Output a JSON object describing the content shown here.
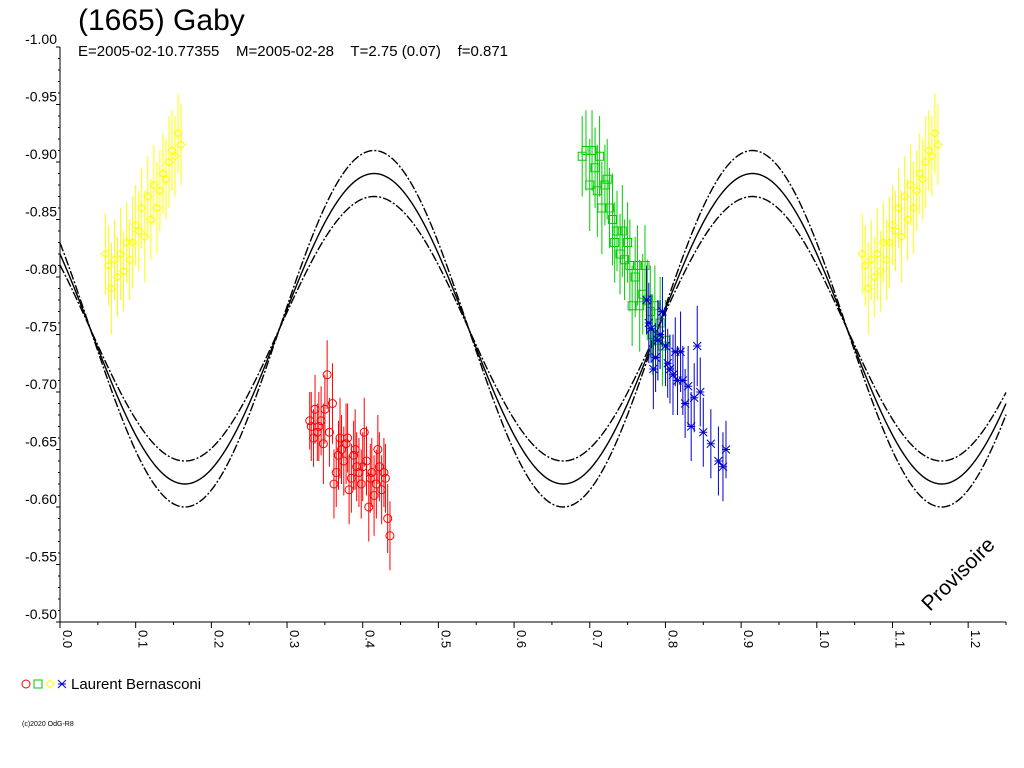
{
  "header": {
    "title": "(1665) Gaby",
    "subtitle": "E=2005-02-10.77355    M=2005-02-28    T=2.75 (0.07)    f=0.871"
  },
  "legend": {
    "label": "Laurent Bernasconi",
    "marker_colors": [
      "#ff0000",
      "#00cc00",
      "#ffff00",
      "#0000cc"
    ]
  },
  "watermark": "Provisoire",
  "copyright": "(c)2020 OdG-R8",
  "chart_data": {
    "type": "scatter",
    "xlim": [
      0,
      1.25
    ],
    "ylim": [
      -1.0,
      -0.5
    ],
    "y_inverted": true,
    "x_ticks": [
      "0.0",
      "0.1",
      "0.2",
      "0.3",
      "0.4",
      "0.5",
      "0.6",
      "0.7",
      "0.8",
      "0.9",
      "1.0",
      "1.1",
      "1.2"
    ],
    "y_ticks": [
      "-1.00",
      "-0.95",
      "-0.90",
      "-0.85",
      "-0.80",
      "-0.75",
      "-0.70",
      "-0.65",
      "-0.60",
      "-0.55",
      "-0.50"
    ],
    "fit_curve": {
      "mean": -0.755,
      "amplitude": 0.135,
      "envelope": 0.02,
      "minimum_phase": 0.415,
      "period_in_phase": 0.5
    },
    "series": [
      {
        "color": "#ff0000",
        "marker": "circle",
        "x": [
          0.33,
          0.332,
          0.335,
          0.337,
          0.34,
          0.342,
          0.345,
          0.348,
          0.35,
          0.353,
          0.356,
          0.36,
          0.362,
          0.365,
          0.368,
          0.37,
          0.372,
          0.375,
          0.378,
          0.38,
          0.382,
          0.385,
          0.388,
          0.39,
          0.392,
          0.395,
          0.398,
          0.4,
          0.402,
          0.405,
          0.408,
          0.41,
          0.412,
          0.415,
          0.418,
          0.42,
          0.422,
          0.425,
          0.428,
          0.43,
          0.433,
          0.436
        ],
        "y": [
          -0.675,
          -0.67,
          -0.66,
          -0.685,
          -0.665,
          -0.67,
          -0.675,
          -0.655,
          -0.685,
          -0.715,
          -0.665,
          -0.69,
          -0.62,
          -0.63,
          -0.645,
          -0.66,
          -0.65,
          -0.64,
          -0.655,
          -0.66,
          -0.615,
          -0.625,
          -0.645,
          -0.65,
          -0.635,
          -0.63,
          -0.62,
          -0.635,
          -0.665,
          -0.64,
          -0.6,
          -0.625,
          -0.63,
          -0.61,
          -0.62,
          -0.65,
          -0.635,
          -0.615,
          -0.63,
          -0.625,
          -0.59,
          -0.575
        ],
        "err": [
          0.025,
          0.03,
          0.025,
          0.03,
          0.025,
          0.03,
          0.03,
          0.035,
          0.03,
          0.03,
          0.03,
          0.035,
          0.03,
          0.03,
          0.03,
          0.035,
          0.03,
          0.03,
          0.035,
          0.03,
          0.03,
          0.03,
          0.03,
          0.035,
          0.03,
          0.03,
          0.03,
          0.03,
          0.03,
          0.03,
          0.03,
          0.03,
          0.03,
          0.035,
          0.03,
          0.03,
          0.03,
          0.03,
          0.03,
          0.03,
          0.03,
          0.03
        ]
      },
      {
        "color": "#00cc00",
        "marker": "square",
        "x": [
          0.69,
          0.695,
          0.7,
          0.703,
          0.707,
          0.71,
          0.713,
          0.716,
          0.72,
          0.723,
          0.726,
          0.73,
          0.733,
          0.736,
          0.74,
          0.743,
          0.746,
          0.75,
          0.753,
          0.756,
          0.76,
          0.763,
          0.766,
          0.77,
          0.773,
          0.776,
          0.78,
          0.783,
          0.786,
          0.79,
          0.793,
          0.796,
          0.8
        ],
        "y": [
          -0.905,
          -0.91,
          -0.88,
          -0.91,
          -0.895,
          -0.875,
          -0.905,
          -0.86,
          -0.88,
          -0.885,
          -0.86,
          -0.85,
          -0.83,
          -0.84,
          -0.82,
          -0.84,
          -0.815,
          -0.83,
          -0.81,
          -0.775,
          -0.8,
          -0.81,
          -0.775,
          -0.785,
          -0.81,
          -0.78,
          -0.77,
          -0.75,
          -0.775,
          -0.745,
          -0.76,
          -0.74,
          -0.745
        ],
        "err": [
          0.035,
          0.035,
          0.04,
          0.035,
          0.035,
          0.04,
          0.035,
          0.04,
          0.035,
          0.035,
          0.035,
          0.04,
          0.035,
          0.035,
          0.035,
          0.04,
          0.035,
          0.035,
          0.04,
          0.035,
          0.035,
          0.035,
          0.04,
          0.035,
          0.035,
          0.035,
          0.04,
          0.035,
          0.035,
          0.035,
          0.04,
          0.035,
          0.035
        ]
      },
      {
        "color": "#ffff00",
        "marker": "diamond",
        "x": [
          0.06,
          0.064,
          0.068,
          0.072,
          0.076,
          0.08,
          0.084,
          0.088,
          0.092,
          0.096,
          0.1,
          0.104,
          0.108,
          0.112,
          0.116,
          0.12,
          0.124,
          0.128,
          0.132,
          0.136,
          0.14,
          0.144,
          0.148,
          0.152,
          0.156,
          0.16
        ],
        "y": [
          -0.82,
          -0.81,
          -0.79,
          -0.815,
          -0.8,
          -0.82,
          -0.805,
          -0.83,
          -0.815,
          -0.83,
          -0.845,
          -0.84,
          -0.86,
          -0.835,
          -0.87,
          -0.85,
          -0.88,
          -0.86,
          -0.875,
          -0.89,
          -0.885,
          -0.9,
          -0.91,
          -0.905,
          -0.925,
          -0.915
        ],
        "err": [
          0.035,
          0.035,
          0.04,
          0.035,
          0.035,
          0.04,
          0.035,
          0.035,
          0.035,
          0.04,
          0.035,
          0.035,
          0.035,
          0.04,
          0.035,
          0.035,
          0.035,
          0.04,
          0.035,
          0.035,
          0.035,
          0.04,
          0.035,
          0.035,
          0.035,
          0.035
        ]
      },
      {
        "color": "#0000cc",
        "marker": "star",
        "x": [
          0.775,
          0.778,
          0.781,
          0.784,
          0.787,
          0.79,
          0.793,
          0.796,
          0.8,
          0.803,
          0.806,
          0.81,
          0.813,
          0.816,
          0.82,
          0.823,
          0.826,
          0.83,
          0.834,
          0.838,
          0.842,
          0.846,
          0.85,
          0.86,
          0.87,
          0.876,
          0.88
        ],
        "y": [
          -0.78,
          -0.76,
          -0.755,
          -0.72,
          -0.73,
          -0.745,
          -0.75,
          -0.77,
          -0.74,
          -0.725,
          -0.72,
          -0.715,
          -0.735,
          -0.71,
          -0.735,
          -0.71,
          -0.69,
          -0.705,
          -0.67,
          -0.695,
          -0.74,
          -0.7,
          -0.665,
          -0.655,
          -0.64,
          -0.635,
          -0.65
        ],
        "err": [
          0.03,
          0.035,
          0.03,
          0.035,
          0.03,
          0.035,
          0.03,
          0.03,
          0.035,
          0.03,
          0.03,
          0.035,
          0.03,
          0.03,
          0.035,
          0.03,
          0.03,
          0.035,
          0.03,
          0.03,
          0.035,
          0.03,
          0.03,
          0.03,
          0.03,
          0.03,
          0.025
        ]
      }
    ],
    "repeated_series": {
      "color": "#ffff00",
      "marker": "diamond",
      "x_offset": 1.0,
      "source_series_index": 2
    }
  }
}
